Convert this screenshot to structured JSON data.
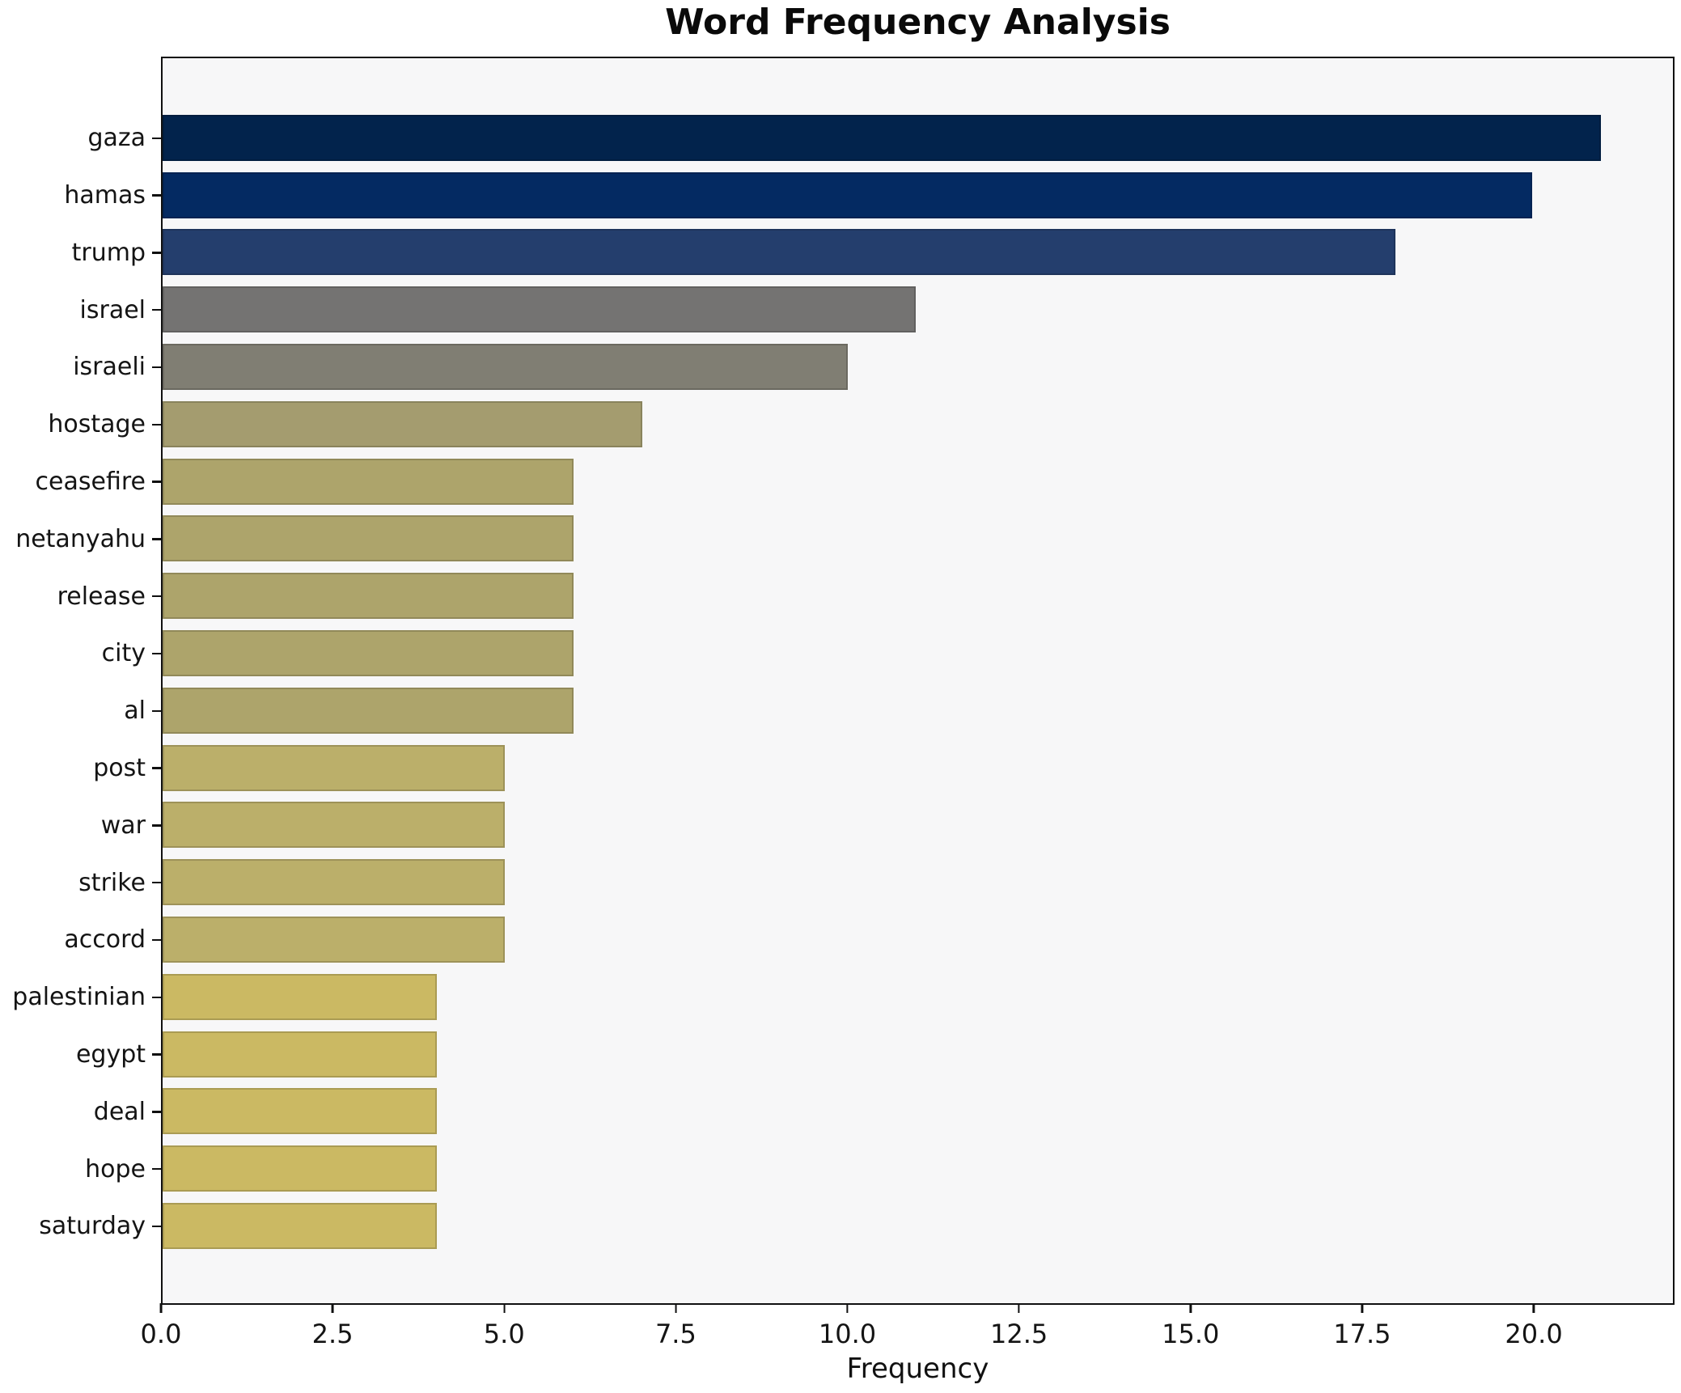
{
  "title": "Word Frequency Analysis",
  "chart_data": {
    "type": "bar",
    "orientation": "horizontal",
    "title": "Word Frequency Analysis",
    "xlabel": "Frequency",
    "ylabel": "",
    "categories": [
      "gaza",
      "hamas",
      "trump",
      "israel",
      "israeli",
      "hostage",
      "ceasefire",
      "netanyahu",
      "release",
      "city",
      "al",
      "post",
      "war",
      "strike",
      "accord",
      "palestinian",
      "egypt",
      "deal",
      "hope",
      "saturday"
    ],
    "values": [
      21,
      20,
      18,
      11,
      10,
      7,
      6,
      6,
      6,
      6,
      6,
      5,
      5,
      5,
      5,
      4,
      4,
      4,
      4,
      4
    ],
    "bar_colors": [
      "#02234c",
      "#042a62",
      "#243e6d",
      "#747372",
      "#807e73",
      "#a49c6f",
      "#ada46b",
      "#ada46b",
      "#ada46b",
      "#ada46b",
      "#ada46b",
      "#bbaf6a",
      "#bbaf6a",
      "#bbaf6a",
      "#bbaf6a",
      "#cbb963",
      "#cbb963",
      "#cbb963",
      "#cbb963",
      "#cbb963"
    ],
    "x_ticks": [
      0,
      2.5,
      5,
      7.5,
      10,
      12.5,
      15,
      17.5,
      20
    ],
    "x_tick_labels": [
      "0.0",
      "2.5",
      "5.0",
      "7.5",
      "10.0",
      "12.5",
      "15.0",
      "17.5",
      "20.0"
    ],
    "xlim": [
      0,
      22.05
    ],
    "grid": false,
    "legend": null,
    "plot_background": "#f7f7f8",
    "figure_background": "#ffffff",
    "spine_color": "#101010"
  }
}
